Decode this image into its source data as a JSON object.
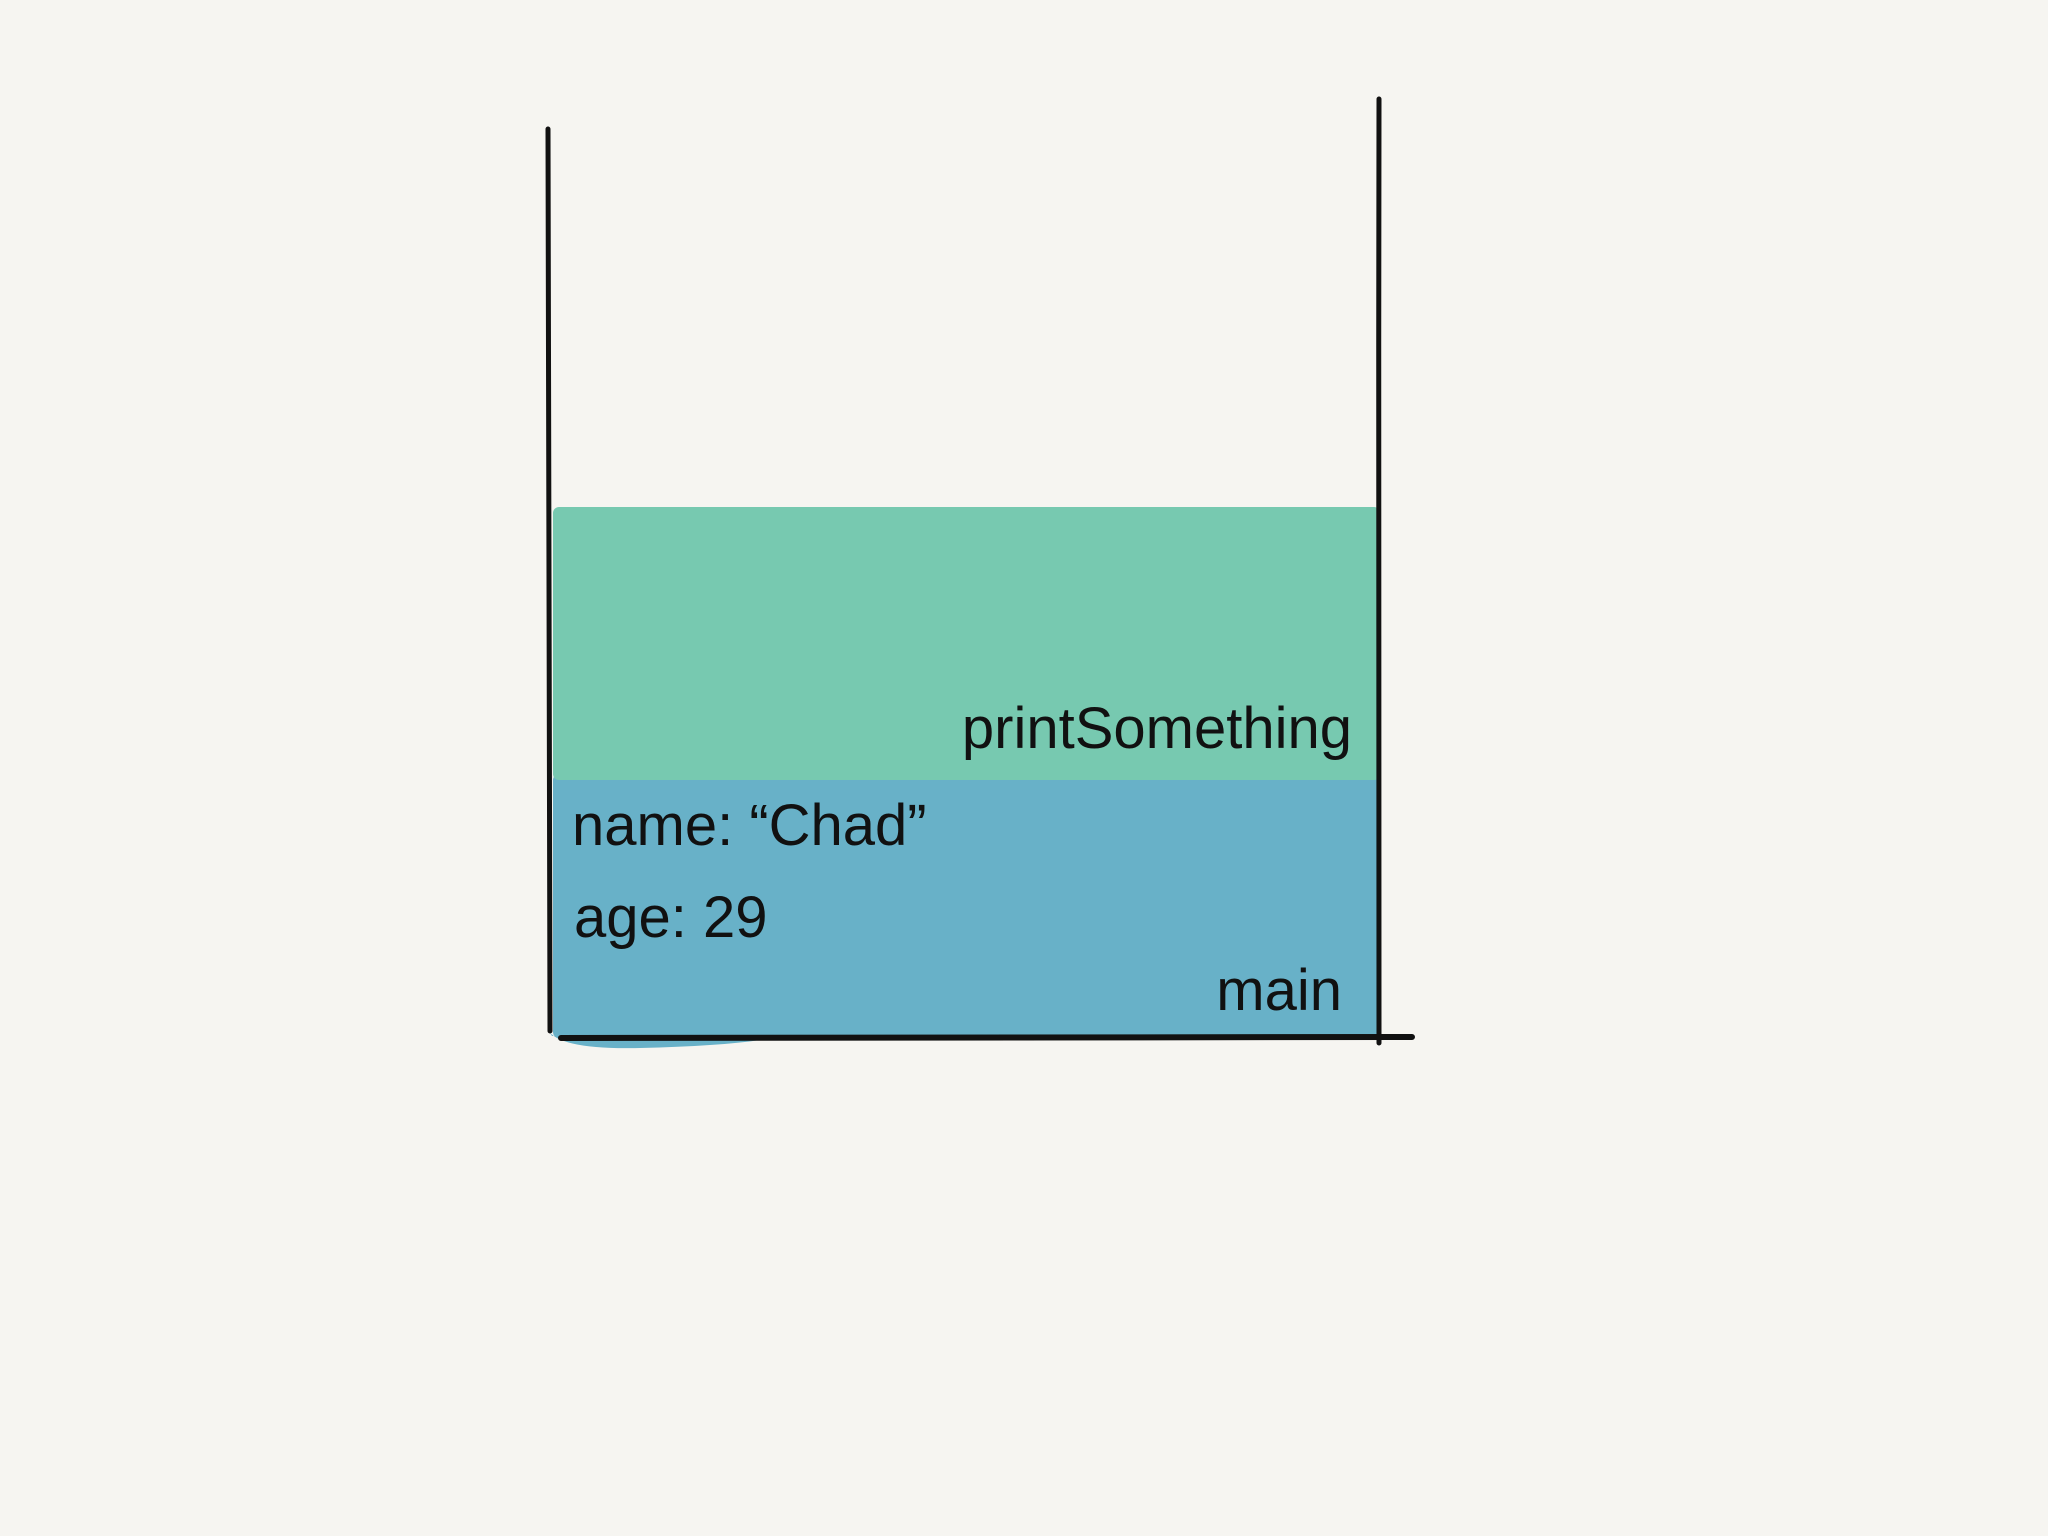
{
  "diagram": {
    "frames": [
      {
        "title": "printSomething",
        "color": "#77c9b0",
        "variables": []
      },
      {
        "title": "main",
        "color": "#68b1c8",
        "variables": [
          {
            "text": "name: “Chad”"
          },
          {
            "text": "age: 29"
          }
        ]
      }
    ],
    "line_color": "#111111",
    "background_color": "#f6f5f1"
  }
}
